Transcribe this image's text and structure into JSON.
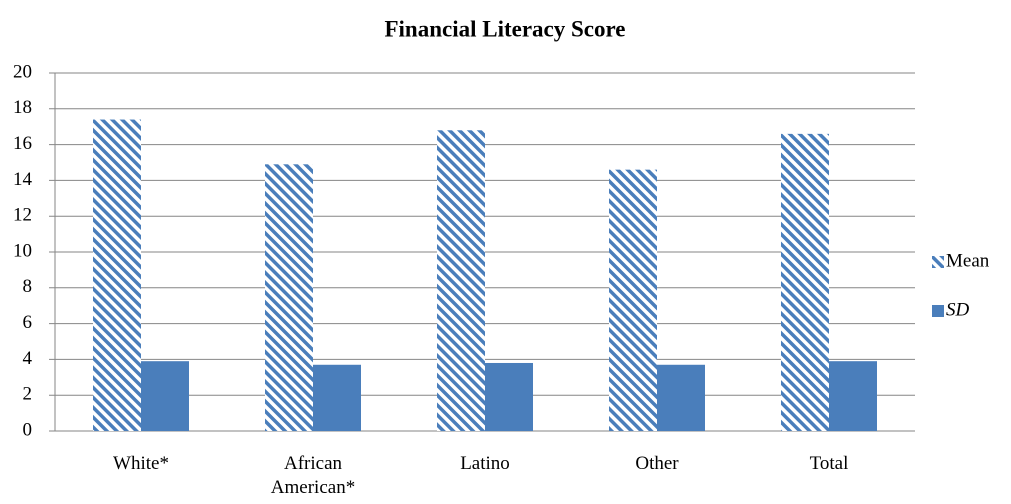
{
  "chart_data": {
    "type": "bar",
    "title": "Financial Literacy Score",
    "categories": [
      "White*",
      "African American*",
      "Latino",
      "Other",
      "Total"
    ],
    "series": [
      {
        "name": "Mean",
        "color": "#4a7ebb",
        "pattern": "hatch",
        "values": [
          17.4,
          14.9,
          16.8,
          14.6,
          16.6
        ]
      },
      {
        "name": "SD",
        "color": "#4a7ebb",
        "pattern": "solid",
        "values": [
          3.9,
          3.7,
          3.8,
          3.7,
          3.9
        ]
      }
    ],
    "ylim": [
      0,
      20
    ],
    "yticks": [
      0,
      2,
      4,
      6,
      8,
      10,
      12,
      14,
      16,
      18,
      20
    ],
    "grid": true,
    "legend": "right"
  }
}
